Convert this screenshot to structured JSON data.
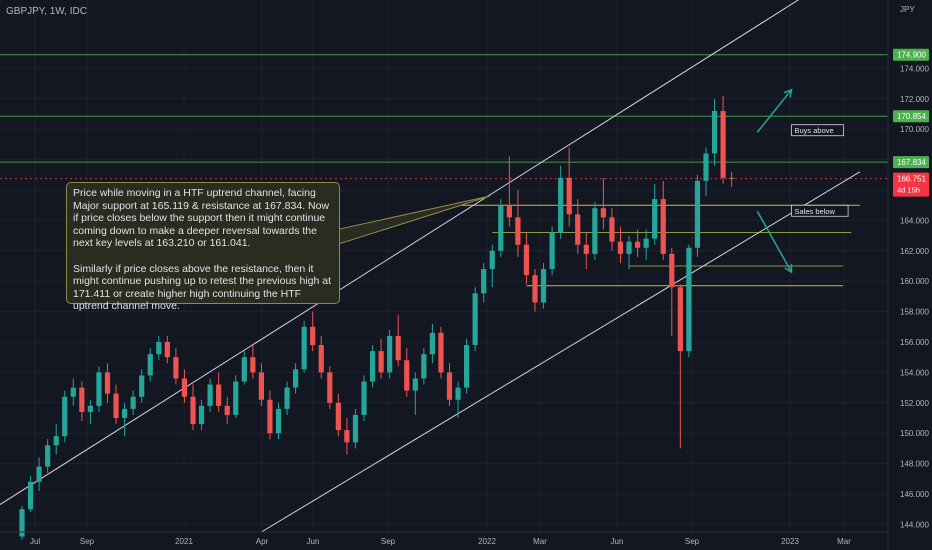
{
  "header": {
    "symbol": "GBPJPY, 1W, IDC"
  },
  "chart_data": {
    "type": "candlestick",
    "currency": "JPY",
    "ylim": [
      143.5,
      178.5
    ],
    "y_ticks": [
      "144.000",
      "146.000",
      "148.000",
      "150.000",
      "152.000",
      "154.000",
      "156.000",
      "158.000",
      "160.000",
      "162.000",
      "164.000",
      "166.000",
      "168.000",
      "170.000",
      "172.000",
      "174.000"
    ],
    "x_ticks": [
      "Jul",
      "Sep",
      "2021",
      "Apr",
      "Jun",
      "Sep",
      "2022",
      "Mar",
      "Jun",
      "Sep",
      "2023",
      "Mar"
    ],
    "price_tags": [
      {
        "label": "174.900",
        "value": 174.9,
        "color": "#4caf50"
      },
      {
        "label": "170.854",
        "value": 170.854,
        "color": "#4caf50"
      },
      {
        "label": "167.834",
        "value": 167.834,
        "color": "#4caf50"
      }
    ],
    "last_price": {
      "label": "166.751",
      "countdown": "4d 15h",
      "value": 166.751,
      "color": "#f23645"
    },
    "horizontal_lines": [
      {
        "value": 174.9,
        "color": "#4caf50"
      },
      {
        "value": 170.854,
        "color": "#4caf50"
      },
      {
        "value": 167.834,
        "color": "#4caf50"
      }
    ],
    "candles": [
      [
        143.2,
        145.2,
        143.0,
        145.0
      ],
      [
        145.0,
        147.2,
        144.8,
        146.8
      ],
      [
        146.8,
        148.4,
        146.2,
        147.8
      ],
      [
        147.8,
        149.6,
        147.4,
        149.2
      ],
      [
        149.2,
        150.6,
        148.6,
        149.8
      ],
      [
        149.8,
        152.8,
        149.4,
        152.4
      ],
      [
        152.4,
        153.6,
        151.8,
        153.0
      ],
      [
        153.0,
        153.4,
        150.8,
        151.4
      ],
      [
        151.4,
        152.2,
        150.6,
        151.8
      ],
      [
        151.8,
        154.4,
        151.4,
        154.0
      ],
      [
        154.0,
        154.6,
        152.0,
        152.6
      ],
      [
        152.6,
        153.2,
        150.6,
        151.0
      ],
      [
        151.0,
        152.0,
        149.8,
        151.6
      ],
      [
        151.6,
        152.8,
        151.2,
        152.4
      ],
      [
        152.4,
        154.2,
        152.0,
        153.8
      ],
      [
        153.8,
        155.6,
        153.4,
        155.2
      ],
      [
        155.2,
        156.4,
        154.8,
        156.0
      ],
      [
        156.0,
        156.4,
        154.6,
        155.0
      ],
      [
        155.0,
        155.6,
        153.2,
        153.6
      ],
      [
        153.6,
        154.2,
        152.0,
        152.4
      ],
      [
        152.4,
        153.2,
        150.2,
        150.6
      ],
      [
        150.6,
        152.2,
        150.2,
        151.8
      ],
      [
        151.8,
        153.6,
        151.4,
        153.2
      ],
      [
        153.2,
        154.0,
        151.4,
        151.8
      ],
      [
        151.8,
        152.4,
        150.6,
        151.2
      ],
      [
        151.2,
        153.8,
        151.0,
        153.4
      ],
      [
        153.4,
        155.4,
        153.2,
        155.0
      ],
      [
        155.0,
        155.8,
        153.6,
        154.0
      ],
      [
        154.0,
        154.6,
        151.8,
        152.2
      ],
      [
        152.2,
        152.8,
        149.6,
        150.0
      ],
      [
        150.0,
        152.0,
        149.6,
        151.6
      ],
      [
        151.6,
        153.4,
        151.2,
        153.0
      ],
      [
        153.0,
        154.6,
        152.6,
        154.2
      ],
      [
        154.2,
        157.4,
        154.0,
        157.0
      ],
      [
        157.0,
        158.0,
        155.4,
        155.8
      ],
      [
        155.8,
        156.4,
        153.6,
        154.0
      ],
      [
        154.0,
        154.4,
        151.6,
        152.0
      ],
      [
        152.0,
        152.6,
        149.8,
        150.2
      ],
      [
        150.2,
        151.0,
        148.6,
        149.4
      ],
      [
        149.4,
        151.6,
        149.0,
        151.2
      ],
      [
        151.2,
        153.8,
        150.8,
        153.4
      ],
      [
        153.4,
        155.8,
        153.0,
        155.4
      ],
      [
        155.4,
        156.2,
        153.6,
        154.0
      ],
      [
        154.0,
        156.8,
        153.6,
        156.4
      ],
      [
        156.4,
        157.8,
        154.4,
        154.8
      ],
      [
        154.8,
        155.6,
        152.4,
        152.8
      ],
      [
        152.8,
        154.0,
        151.2,
        153.6
      ],
      [
        153.6,
        155.6,
        153.2,
        155.2
      ],
      [
        155.2,
        157.2,
        154.6,
        156.6
      ],
      [
        156.6,
        157.0,
        153.6,
        154.0
      ],
      [
        154.0,
        154.6,
        151.8,
        152.2
      ],
      [
        152.2,
        153.4,
        151.0,
        153.0
      ],
      [
        153.0,
        156.2,
        152.6,
        155.8
      ],
      [
        155.8,
        159.6,
        155.4,
        159.2
      ],
      [
        159.2,
        161.2,
        158.6,
        160.8
      ],
      [
        160.8,
        162.4,
        159.6,
        162.0
      ],
      [
        162.0,
        165.4,
        161.6,
        165.0
      ],
      [
        165.0,
        168.2,
        163.6,
        164.2
      ],
      [
        164.2,
        166.0,
        161.6,
        162.4
      ],
      [
        162.4,
        163.2,
        159.8,
        160.4
      ],
      [
        160.4,
        160.8,
        158.0,
        158.6
      ],
      [
        158.6,
        161.2,
        158.2,
        160.8
      ],
      [
        160.8,
        163.6,
        160.4,
        163.2
      ],
      [
        163.2,
        167.6,
        162.8,
        166.8
      ],
      [
        166.8,
        168.8,
        163.6,
        164.4
      ],
      [
        164.4,
        165.4,
        161.8,
        162.4
      ],
      [
        162.4,
        163.2,
        160.8,
        161.8
      ],
      [
        161.8,
        165.2,
        161.4,
        164.8
      ],
      [
        164.8,
        166.8,
        163.4,
        164.2
      ],
      [
        164.2,
        164.8,
        162.0,
        162.6
      ],
      [
        162.6,
        163.6,
        161.2,
        161.8
      ],
      [
        161.8,
        163.0,
        160.8,
        162.6
      ],
      [
        162.6,
        163.4,
        161.6,
        162.2
      ],
      [
        162.2,
        163.4,
        161.4,
        162.8
      ],
      [
        162.8,
        166.4,
        162.4,
        165.4
      ],
      [
        165.4,
        166.6,
        161.4,
        161.8
      ],
      [
        161.8,
        162.2,
        156.4,
        159.6
      ],
      [
        159.6,
        159.8,
        149.0,
        155.4
      ],
      [
        155.4,
        162.4,
        155.0,
        162.2
      ],
      [
        162.2,
        167.0,
        161.6,
        166.6
      ],
      [
        166.6,
        168.8,
        165.6,
        168.4
      ],
      [
        168.4,
        172.0,
        167.6,
        171.2
      ],
      [
        171.2,
        172.2,
        166.4,
        166.8
      ],
      [
        166.8,
        167.2,
        166.2,
        166.75
      ]
    ],
    "channel": {
      "upper": [
        [
          -4,
          144.8
        ],
        [
          95,
          180.0
        ]
      ],
      "lower": [
        [
          28,
          143.5
        ],
        [
          98,
          167.2
        ]
      ]
    },
    "levels": [
      {
        "from": 50,
        "to": 98,
        "value": 165.0,
        "color": "#d4b64a"
      },
      {
        "from": 55,
        "to": 97,
        "value": 163.2,
        "color": "#8a9a3a"
      },
      {
        "from": 71,
        "to": 96,
        "value": 161.0,
        "color": "#8a9a3a"
      },
      {
        "from": 59,
        "to": 96,
        "value": 159.7,
        "color": "#d4b64a"
      }
    ],
    "projection_arrows": [
      {
        "from": [
          86,
          169.8
        ],
        "to": [
          90,
          172.6
        ],
        "color": "#26a69a"
      },
      {
        "from": [
          86,
          164.6
        ],
        "to": [
          90,
          160.6
        ],
        "color": "#26a69a"
      }
    ],
    "annotation_labels": [
      {
        "text": "Buys above",
        "at": [
          90,
          169.9
        ]
      },
      {
        "text": "Sales below",
        "at": [
          90,
          164.6
        ]
      }
    ],
    "callout_text": [
      "Price while moving in a HTF uptrend channel, facing Major support at 165.119 & resistance at 167.834. Now if price closes below the support then it might continue coming down to make a deeper reversal towards the next key levels at 163.210 or 161.041.",
      "Similarly if price closes above the resistance, then it might continue pushing up to retest the previous high at 171.411 or create higher high continuing the HTF uptrend channel move."
    ],
    "colors": {
      "up": "#26a69a",
      "down": "#ef5350",
      "background": "#131722",
      "grid": "#1e222d"
    }
  }
}
